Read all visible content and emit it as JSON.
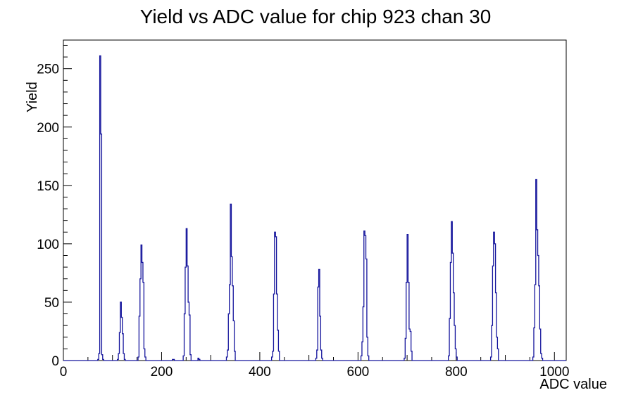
{
  "chart_data": {
    "type": "bar",
    "style": "root-histogram-step-outline",
    "title": "Yield vs ADC value for chip 923 chan 30",
    "xlabel": "ADC value",
    "ylabel": "Yield",
    "xlim": [
      0,
      1024
    ],
    "ylim": [
      0,
      274.5
    ],
    "bin_width": 2,
    "x_major_ticks": [
      0,
      200,
      400,
      600,
      800,
      1000
    ],
    "x_mid_tick_step": 100,
    "x_minor_tick_step": 50,
    "y_major_ticks": [
      0,
      50,
      100,
      150,
      200,
      250
    ],
    "y_minor_tick_step": 10,
    "grid": false,
    "legend": false,
    "line_color": "#14149c",
    "axis_color": "#000000",
    "background": "#ffffff",
    "bins": [
      [
        70,
        1
      ],
      [
        72,
        6
      ],
      [
        74,
        261
      ],
      [
        76,
        194
      ],
      [
        78,
        5
      ],
      [
        80,
        1
      ],
      [
        110,
        1
      ],
      [
        112,
        6
      ],
      [
        114,
        24
      ],
      [
        116,
        50
      ],
      [
        118,
        37
      ],
      [
        120,
        23
      ],
      [
        122,
        6
      ],
      [
        124,
        1
      ],
      [
        152,
        3
      ],
      [
        154,
        38
      ],
      [
        156,
        70
      ],
      [
        158,
        99
      ],
      [
        160,
        84
      ],
      [
        162,
        67
      ],
      [
        164,
        10
      ],
      [
        166,
        3
      ],
      [
        222,
        1
      ],
      [
        224,
        1
      ],
      [
        244,
        4
      ],
      [
        246,
        40
      ],
      [
        248,
        80
      ],
      [
        250,
        113
      ],
      [
        252,
        81
      ],
      [
        254,
        50
      ],
      [
        256,
        39
      ],
      [
        258,
        5
      ],
      [
        274,
        2
      ],
      [
        276,
        1
      ],
      [
        332,
        3
      ],
      [
        334,
        9
      ],
      [
        336,
        40
      ],
      [
        338,
        65
      ],
      [
        340,
        134
      ],
      [
        342,
        89
      ],
      [
        344,
        64
      ],
      [
        346,
        34
      ],
      [
        348,
        8
      ],
      [
        424,
        3
      ],
      [
        426,
        8
      ],
      [
        428,
        57
      ],
      [
        430,
        110
      ],
      [
        432,
        106
      ],
      [
        434,
        57
      ],
      [
        436,
        26
      ],
      [
        438,
        8
      ],
      [
        514,
        2
      ],
      [
        516,
        9
      ],
      [
        518,
        63
      ],
      [
        520,
        78
      ],
      [
        522,
        38
      ],
      [
        524,
        9
      ],
      [
        526,
        2
      ],
      [
        606,
        4
      ],
      [
        608,
        16
      ],
      [
        610,
        46
      ],
      [
        612,
        111
      ],
      [
        614,
        107
      ],
      [
        616,
        87
      ],
      [
        618,
        20
      ],
      [
        620,
        4
      ],
      [
        694,
        2
      ],
      [
        696,
        19
      ],
      [
        698,
        67
      ],
      [
        700,
        108
      ],
      [
        702,
        67
      ],
      [
        704,
        27
      ],
      [
        706,
        25
      ],
      [
        708,
        8
      ],
      [
        784,
        4
      ],
      [
        786,
        36
      ],
      [
        788,
        84
      ],
      [
        790,
        119
      ],
      [
        792,
        92
      ],
      [
        794,
        58
      ],
      [
        796,
        30
      ],
      [
        798,
        10
      ],
      [
        800,
        3
      ],
      [
        870,
        3
      ],
      [
        872,
        30
      ],
      [
        874,
        81
      ],
      [
        876,
        110
      ],
      [
        878,
        100
      ],
      [
        880,
        58
      ],
      [
        882,
        20
      ],
      [
        884,
        10
      ],
      [
        956,
        3
      ],
      [
        958,
        28
      ],
      [
        960,
        65
      ],
      [
        962,
        155
      ],
      [
        964,
        112
      ],
      [
        966,
        90
      ],
      [
        968,
        64
      ],
      [
        970,
        27
      ],
      [
        972,
        6
      ],
      [
        974,
        2
      ]
    ]
  }
}
